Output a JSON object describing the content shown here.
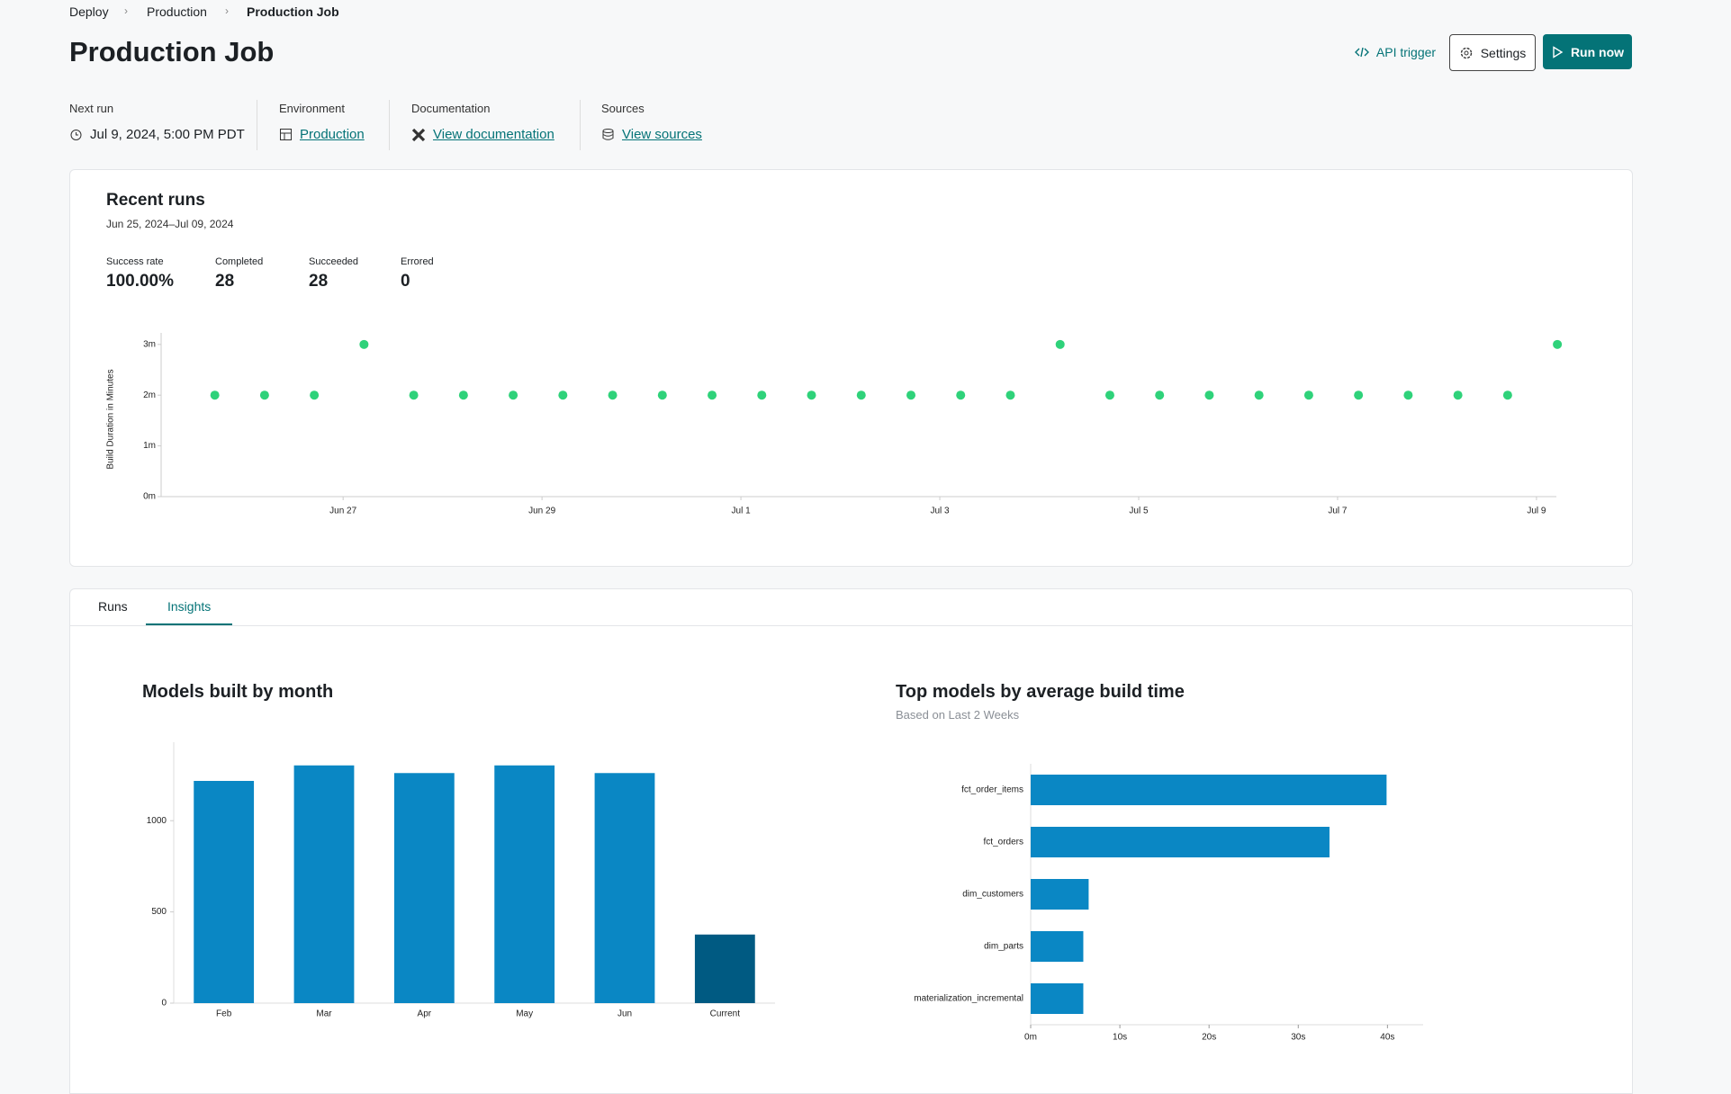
{
  "breadcrumb": [
    "Deploy",
    "Production",
    "Production Job"
  ],
  "header": {
    "title": "Production Job",
    "actions": [
      "API trigger",
      "Settings",
      "Run now"
    ]
  },
  "meta": [
    {
      "label": "Next run",
      "value": "Jul 9, 2024, 5:00 PM PDT"
    },
    {
      "label": "Environment",
      "value": "Production"
    },
    {
      "label": "Documentation",
      "value": "View documentation"
    },
    {
      "label": "Sources",
      "value": "View sources"
    }
  ],
  "recent_runs": {
    "title": "Recent runs",
    "date_range": "Jun 25, 2024–Jul 09, 2024",
    "stats": [
      {
        "label": "Success rate",
        "value": "100.00%"
      },
      {
        "label": "Completed",
        "value": 28
      },
      {
        "label": "Succeeded",
        "value": 28
      },
      {
        "label": "Errored",
        "value": 0
      }
    ],
    "chart_data": {
      "type": "scatter",
      "y_label": "Build Duration in Minutes",
      "color": "#2fd27a",
      "x": [
        0.71,
        1.21,
        1.71,
        2.21,
        2.71,
        3.21,
        3.71,
        4.21,
        4.71,
        5.21,
        5.71,
        6.21,
        6.71,
        7.21,
        7.71,
        8.21,
        8.71,
        9.21,
        9.71,
        10.21,
        10.71,
        11.21,
        11.71,
        12.21,
        12.71,
        13.21,
        13.71,
        14.21
      ],
      "values": [
        2,
        2,
        2,
        3,
        2,
        2,
        2,
        2,
        2,
        2,
        2,
        2,
        2,
        2,
        2,
        2,
        2,
        3,
        2,
        2,
        2,
        2,
        2,
        2,
        2,
        2,
        2,
        3
      ],
      "xlim": [
        0.17,
        14.2
      ],
      "xticks": [
        {
          "value": 2,
          "label": "Jun 27"
        },
        {
          "value": 4,
          "label": "Jun 29"
        },
        {
          "value": 6,
          "label": "Jul 1"
        },
        {
          "value": 8,
          "label": "Jul 3"
        },
        {
          "value": 10,
          "label": "Jul 5"
        },
        {
          "value": 12,
          "label": "Jul 7"
        },
        {
          "value": 14,
          "label": "Jul 9"
        }
      ],
      "ylim": [
        0,
        3.05
      ],
      "yticks": [
        {
          "value": 0,
          "label": "0m"
        },
        {
          "value": 1,
          "label": "1m"
        },
        {
          "value": 2,
          "label": "2m"
        },
        {
          "value": 3,
          "label": "3m"
        }
      ]
    }
  },
  "tabs": [
    "Runs",
    "Insights"
  ],
  "insights": [
    {
      "chart_data": {
        "type": "bar",
        "title": "Models built by month",
        "categories": [
          "Feb",
          "Mar",
          "Apr",
          "May",
          "Jun",
          "Current"
        ],
        "values": [
          1218,
          1303,
          1261,
          1303,
          1261,
          376
        ],
        "colors": [
          "#0a87c4",
          "#0a87c4",
          "#0a87c4",
          "#0a87c4",
          "#0a87c4",
          "#005a82"
        ],
        "ylim": [
          0,
          1430
        ],
        "yticks": [
          0,
          500,
          1000
        ]
      }
    },
    {
      "chart_data": {
        "type": "barh",
        "title": "Top models by average build time",
        "subtitle": "Based on Last 2 Weeks",
        "categories": [
          "fct_order_items",
          "fct_orders",
          "dim_customers",
          "dim_parts",
          "materialization_incremental"
        ],
        "values": [
          39.9,
          33.5,
          6.5,
          5.9,
          5.9
        ],
        "color": "#0a87c4",
        "xlim": [
          0,
          44
        ],
        "xticks": [
          {
            "value": 0,
            "label": "0m"
          },
          {
            "value": 10,
            "label": "10s"
          },
          {
            "value": 20,
            "label": "20s"
          },
          {
            "value": 30,
            "label": "30s"
          },
          {
            "value": 40,
            "label": "40s"
          }
        ]
      }
    }
  ]
}
